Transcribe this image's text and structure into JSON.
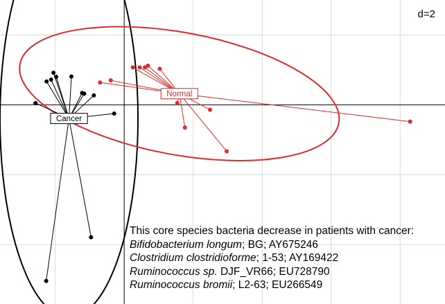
{
  "chart_data": {
    "type": "scatter",
    "scale_label": "d=2",
    "grid": true,
    "axes_cross_at": [
      0,
      0
    ],
    "xlim": [
      -3.6,
      9.3
    ],
    "ylim": [
      -5.7,
      3.0
    ],
    "colors": {
      "Cancer": "#000000",
      "Normal": "#e0282a",
      "grid": "#d9d9d9"
    },
    "groups": [
      {
        "name": "Cancer",
        "centroid": [
          -1.6,
          -0.39
        ],
        "ellipse": {
          "rx": 2.0,
          "ry": 5.7,
          "center": [
            -1.6,
            -0.39
          ]
        },
        "points": [
          [
            -2.57,
            0.05
          ],
          [
            -2.25,
            0.67
          ],
          [
            -2.12,
            0.72
          ],
          [
            -2.05,
            0.92
          ],
          [
            -1.97,
            0.8
          ],
          [
            -1.53,
            0.81
          ],
          [
            -1.16,
            0.32
          ],
          [
            -1.22,
            0.34
          ],
          [
            -0.88,
            0.27
          ],
          [
            -0.96,
            -3.79
          ],
          [
            -0.29,
            -0.25
          ],
          [
            -2.26,
            -5.04
          ]
        ]
      },
      {
        "name": "Normal",
        "centroid": [
          1.6,
          0.32
        ],
        "ellipse": {
          "rx": 4.7,
          "ry": 1.75,
          "center": [
            1.6,
            0.32
          ],
          "angle_deg": 10.5
        },
        "points": [
          [
            -0.7,
            0.64
          ],
          [
            -0.39,
            0.7
          ],
          [
            0.25,
            1.07
          ],
          [
            0.45,
            1.07
          ],
          [
            0.6,
            1.07
          ],
          [
            0.69,
            1.12
          ],
          [
            1.03,
            1.03
          ],
          [
            1.54,
            0.05
          ],
          [
            1.76,
            -0.65
          ],
          [
            2.49,
            -0.14
          ],
          [
            2.97,
            -1.33
          ],
          [
            8.29,
            -0.48
          ]
        ]
      }
    ]
  },
  "annotation": {
    "heading": "This core species bacteria decrease in patients with cancer:",
    "species": [
      {
        "name": "Bifidobacterium longum",
        "detail": "; BG; AY675246"
      },
      {
        "name": "Clostridium clostridioforme",
        "detail": "; 1-53; AY169422"
      },
      {
        "name": "Ruminococcus sp.",
        "detail": " DJF_VR66; EU728790"
      },
      {
        "name": "Ruminococcus bromii",
        "detail": "; L2-63; EU266549"
      }
    ]
  }
}
